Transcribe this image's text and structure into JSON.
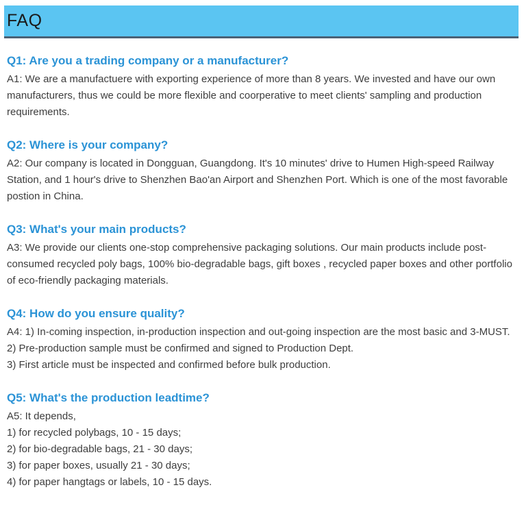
{
  "header": {
    "title": "FAQ"
  },
  "colors": {
    "header_bg": "#5bc5f2",
    "header_border": "#4a6175",
    "question_color": "#2b93d6",
    "body_text": "#3d3d3d",
    "title_text": "#1a1a1a"
  },
  "faq": {
    "items": [
      {
        "question": "Q1: Are you a trading company or a manufacturer?",
        "answer_lines": [
          "A1: We are a manufactuere with exporting experience of more than 8 years. We invested and have our own manufacturers, thus we could be more flexible and coorperative to meet clients' sampling and production requirements."
        ]
      },
      {
        "question": "Q2: Where is your company?",
        "answer_lines": [
          "A2: Our company is located in Dongguan, Guangdong. It's 10 minutes' drive to Humen High-speed Railway Station, and 1 hour's drive to Shenzhen Bao'an Airport and Shenzhen Port. Which is one of the most favorable postion in China."
        ]
      },
      {
        "question": "Q3: What's your main products?",
        "answer_lines": [
          "A3: We provide our clients one-stop comprehensive packaging solutions. Our main products include post-consumed recycled poly bags, 100% bio-degradable bags, gift boxes , recycled paper boxes and other portfolio of eco-friendly packaging materials."
        ]
      },
      {
        "question": "Q4: How do you ensure quality?",
        "answer_lines": [
          "A4: 1) In-coming inspection, in-production inspection and out-going inspection are the most basic and 3-MUST.",
          "2) Pre-production sample must be confirmed and signed to Production Dept.",
          "3) First article must be inspected and confirmed before bulk production."
        ]
      },
      {
        "question": "Q5: What's the production leadtime?",
        "answer_lines": [
          "A5: It depends,",
          "1) for recycled polybags, 10 - 15 days;",
          "2) for bio-degradable bags, 21 - 30 days;",
          "3) for paper boxes, usually 21 - 30 days;",
          "4) for paper hangtags or labels, 10 - 15 days."
        ]
      }
    ]
  }
}
